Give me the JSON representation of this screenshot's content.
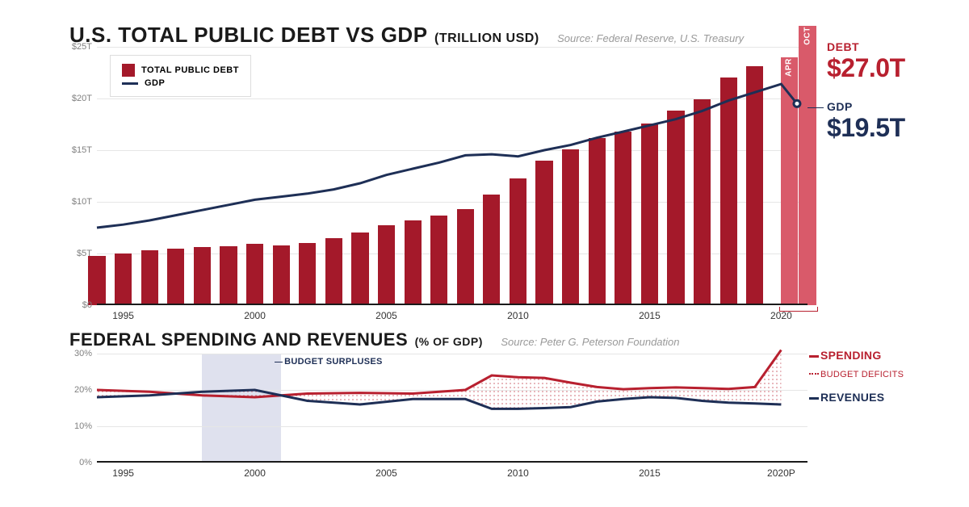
{
  "colors": {
    "debt_bar": "#a4192a",
    "debt_bar_light": "#d95a6a",
    "gdp_line": "#1e2f56",
    "spending": "#b8202f",
    "revenue": "#1e2f56",
    "grid": "#e6e6e6",
    "axis": "#1a1a1a",
    "ytick": "#808080",
    "surplus_band": "#c5c9e0",
    "deficit_fill": "#f3d2d6",
    "bracket": "#b8202f"
  },
  "top_chart": {
    "title_main": "U.S. TOTAL PUBLIC DEBT VS GDP",
    "title_sub": "(TRILLION USD)",
    "source": "Source: Federal Reserve, U.S. Treasury",
    "legend": {
      "bar": "TOTAL PUBLIC DEBT",
      "line": "GDP"
    },
    "y": {
      "min": 0,
      "max": 25,
      "ticks": [
        0,
        5,
        10,
        15,
        20,
        25
      ],
      "tick_labels": [
        "$0",
        "$5T",
        "$10T",
        "$15T",
        "$20T",
        "$25T"
      ]
    },
    "x": {
      "min": 1994,
      "max": 2021,
      "ticks": [
        1995,
        2000,
        2005,
        2010,
        2015,
        2020
      ]
    },
    "bars": {
      "years": [
        1994,
        1995,
        1996,
        1997,
        1998,
        1999,
        2000,
        2001,
        2002,
        2003,
        2004,
        2005,
        2006,
        2007,
        2008,
        2009,
        2010,
        2011,
        2012,
        2013,
        2014,
        2015,
        2016,
        2017,
        2018,
        2019
      ],
      "values": [
        4.8,
        5.0,
        5.3,
        5.5,
        5.6,
        5.7,
        5.9,
        5.8,
        6.0,
        6.5,
        7.0,
        7.7,
        8.2,
        8.7,
        9.3,
        10.7,
        12.3,
        14.0,
        15.1,
        16.2,
        16.8,
        17.6,
        18.8,
        19.9,
        22.0,
        23.1
      ]
    },
    "extra_bars": [
      {
        "year": 2020.3,
        "value": 24.0,
        "label": "APR"
      },
      {
        "year": 2021.0,
        "value": 27.0,
        "label": "OCT"
      }
    ],
    "bracket_label_year": 2020,
    "gdp_line_data": {
      "years": [
        1994,
        1995,
        1996,
        1997,
        1998,
        1999,
        2000,
        2001,
        2002,
        2003,
        2004,
        2005,
        2006,
        2007,
        2008,
        2009,
        2010,
        2011,
        2012,
        2013,
        2014,
        2015,
        2016,
        2017,
        2018,
        2019,
        2020,
        2020.6
      ],
      "values": [
        7.5,
        7.8,
        8.2,
        8.7,
        9.2,
        9.7,
        10.2,
        10.5,
        10.8,
        11.2,
        11.8,
        12.6,
        13.2,
        13.8,
        14.5,
        14.6,
        14.4,
        15.0,
        15.5,
        16.2,
        16.8,
        17.4,
        18.0,
        18.8,
        19.8,
        20.6,
        21.4,
        19.5
      ]
    },
    "callout_debt": {
      "label": "DEBT",
      "value": "$27.0T"
    },
    "callout_gdp": {
      "label": "GDP",
      "value": "$19.5T"
    }
  },
  "bottom_chart": {
    "title_main": "FEDERAL SPENDING AND REVENUES",
    "title_sub": "(% OF GDP)",
    "source": "Source: Peter G. Peterson Foundation",
    "y": {
      "min": 0,
      "max": 30,
      "ticks": [
        0,
        10,
        20,
        30
      ],
      "tick_labels": [
        "0%",
        "10%",
        "20%",
        "30%"
      ]
    },
    "x": {
      "min": 1994,
      "max": 2021,
      "ticks": [
        1995,
        2000,
        2005,
        2010,
        2015
      ],
      "last_tick_year": 2020,
      "last_tick_label": "2020P"
    },
    "surplus_band": {
      "start": 1998,
      "end": 2001,
      "label": "BUDGET SURPLUSES"
    },
    "deficit_label": "BUDGET DEFICITS",
    "spending": {
      "label": "SPENDING",
      "years": [
        1994,
        1996,
        1998,
        2000,
        2002,
        2004,
        2006,
        2008,
        2009,
        2010,
        2011,
        2012,
        2013,
        2014,
        2015,
        2016,
        2017,
        2018,
        2019,
        2020
      ],
      "values": [
        20.0,
        19.5,
        18.5,
        18.0,
        19.0,
        19.2,
        19.0,
        20.0,
        24.0,
        23.5,
        23.3,
        22.0,
        20.8,
        20.2,
        20.5,
        20.7,
        20.5,
        20.3,
        20.8,
        31.0
      ]
    },
    "revenues": {
      "label": "REVENUES",
      "years": [
        1994,
        1996,
        1998,
        2000,
        2002,
        2004,
        2006,
        2008,
        2009,
        2010,
        2011,
        2012,
        2013,
        2014,
        2015,
        2016,
        2017,
        2018,
        2019,
        2020
      ],
      "values": [
        18.0,
        18.5,
        19.5,
        20.0,
        17.0,
        16.0,
        17.5,
        17.5,
        14.8,
        14.8,
        15.0,
        15.3,
        16.8,
        17.5,
        18.0,
        17.8,
        17.0,
        16.5,
        16.3,
        16.0
      ]
    }
  }
}
